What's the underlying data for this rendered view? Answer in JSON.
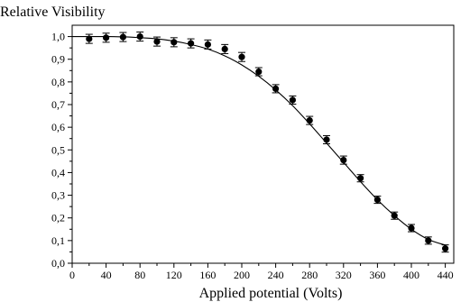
{
  "chart_data": {
    "type": "scatter",
    "title": "",
    "xlabel": "Applied potential (Volts)",
    "ylabel": "Relative Visibility",
    "xlim": [
      0,
      450
    ],
    "ylim": [
      0,
      1.05
    ],
    "x_ticks": [
      0,
      40,
      80,
      120,
      160,
      200,
      240,
      280,
      320,
      360,
      400,
      440
    ],
    "y_ticks": [
      0.0,
      0.1,
      0.2,
      0.3,
      0.4,
      0.5,
      0.6,
      0.7,
      0.8,
      0.9,
      1.0
    ],
    "y_tick_labels": [
      "0,0",
      "0,1",
      "0,2",
      "0,3",
      "0,4",
      "0,5",
      "0,6",
      "0,7",
      "0,8",
      "0,9",
      "1,0"
    ],
    "x_tick_labels": [
      "0",
      "40",
      "80",
      "120",
      "160",
      "200",
      "240",
      "280",
      "320",
      "360",
      "400",
      "440"
    ],
    "grid": false,
    "legend": "none",
    "series": [
      {
        "kind": "points-with-errorbars",
        "marker_color": "#000000",
        "x": [
          20,
          40,
          60,
          80,
          100,
          120,
          140,
          160,
          180,
          200,
          220,
          240,
          260,
          280,
          300,
          320,
          340,
          360,
          380,
          400,
          420,
          440
        ],
        "y": [
          0.99,
          0.995,
          0.998,
          1.0,
          0.978,
          0.975,
          0.97,
          0.965,
          0.945,
          0.91,
          0.845,
          0.77,
          0.72,
          0.63,
          0.545,
          0.455,
          0.375,
          0.28,
          0.21,
          0.155,
          0.1,
          0.065
        ],
        "yerr": [
          0.02,
          0.02,
          0.02,
          0.02,
          0.02,
          0.02,
          0.02,
          0.02,
          0.02,
          0.02,
          0.018,
          0.018,
          0.018,
          0.018,
          0.018,
          0.018,
          0.016,
          0.016,
          0.016,
          0.016,
          0.016,
          0.016
        ]
      },
      {
        "kind": "fit-curve",
        "line_color": "#000000",
        "x": [
          0,
          20,
          40,
          60,
          80,
          100,
          120,
          140,
          160,
          180,
          200,
          220,
          240,
          260,
          280,
          300,
          320,
          340,
          360,
          380,
          400,
          420,
          440
        ],
        "y": [
          1.0,
          1.0,
          1.0,
          0.999,
          0.995,
          0.99,
          0.98,
          0.965,
          0.945,
          0.915,
          0.875,
          0.825,
          0.765,
          0.695,
          0.615,
          0.53,
          0.445,
          0.36,
          0.28,
          0.21,
          0.15,
          0.105,
          0.08
        ]
      }
    ]
  }
}
